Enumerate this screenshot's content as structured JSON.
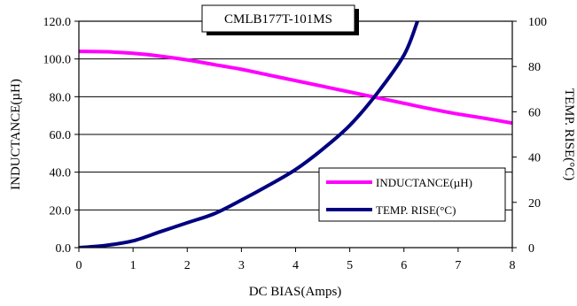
{
  "chart_data": {
    "type": "line",
    "title": "CMLB177T-101MS",
    "xlabel": "DC BIAS(Amps)",
    "ylabel_left": "INDUCTANCE(µH)",
    "ylabel_right": "TEMP. RISE(°C)",
    "xlim": [
      0,
      8
    ],
    "ylim_left": [
      0,
      120
    ],
    "ylim_right": [
      0,
      100
    ],
    "x_ticks": [
      "0",
      "1",
      "2",
      "3",
      "4",
      "5",
      "6",
      "7",
      "8"
    ],
    "y_left_ticks": [
      "0.0",
      "20.0",
      "40.0",
      "60.0",
      "80.0",
      "100.0",
      "120.0"
    ],
    "y_right_ticks": [
      "0",
      "20",
      "40",
      "60",
      "80",
      "100"
    ],
    "grid": "horizontal",
    "legend_position": "bottom-right",
    "series": [
      {
        "name": "INDUCTANCE(µH)",
        "axis": "left",
        "color": "#ff00ff",
        "x": [
          0,
          0.5,
          1.0,
          1.5,
          2.0,
          2.5,
          3.0,
          3.5,
          4.0,
          4.5,
          5.0,
          5.5,
          6.0,
          6.5,
          7.0,
          7.5,
          8.0
        ],
        "values": [
          104.0,
          103.8,
          103.0,
          101.5,
          99.5,
          97.0,
          94.5,
          91.5,
          88.5,
          85.5,
          82.5,
          79.5,
          76.5,
          73.5,
          70.8,
          68.5,
          66.0
        ]
      },
      {
        "name": "TEMP. RISE(°C)",
        "axis": "right",
        "color": "#000080",
        "x": [
          0,
          0.5,
          1.0,
          1.5,
          2.0,
          2.5,
          3.0,
          3.5,
          4.0,
          4.5,
          5.0,
          5.5,
          6.0,
          6.25
        ],
        "values": [
          0,
          1,
          3,
          7,
          11,
          15,
          21,
          27.5,
          34.5,
          43.5,
          54,
          68,
          85,
          100
        ]
      }
    ]
  }
}
